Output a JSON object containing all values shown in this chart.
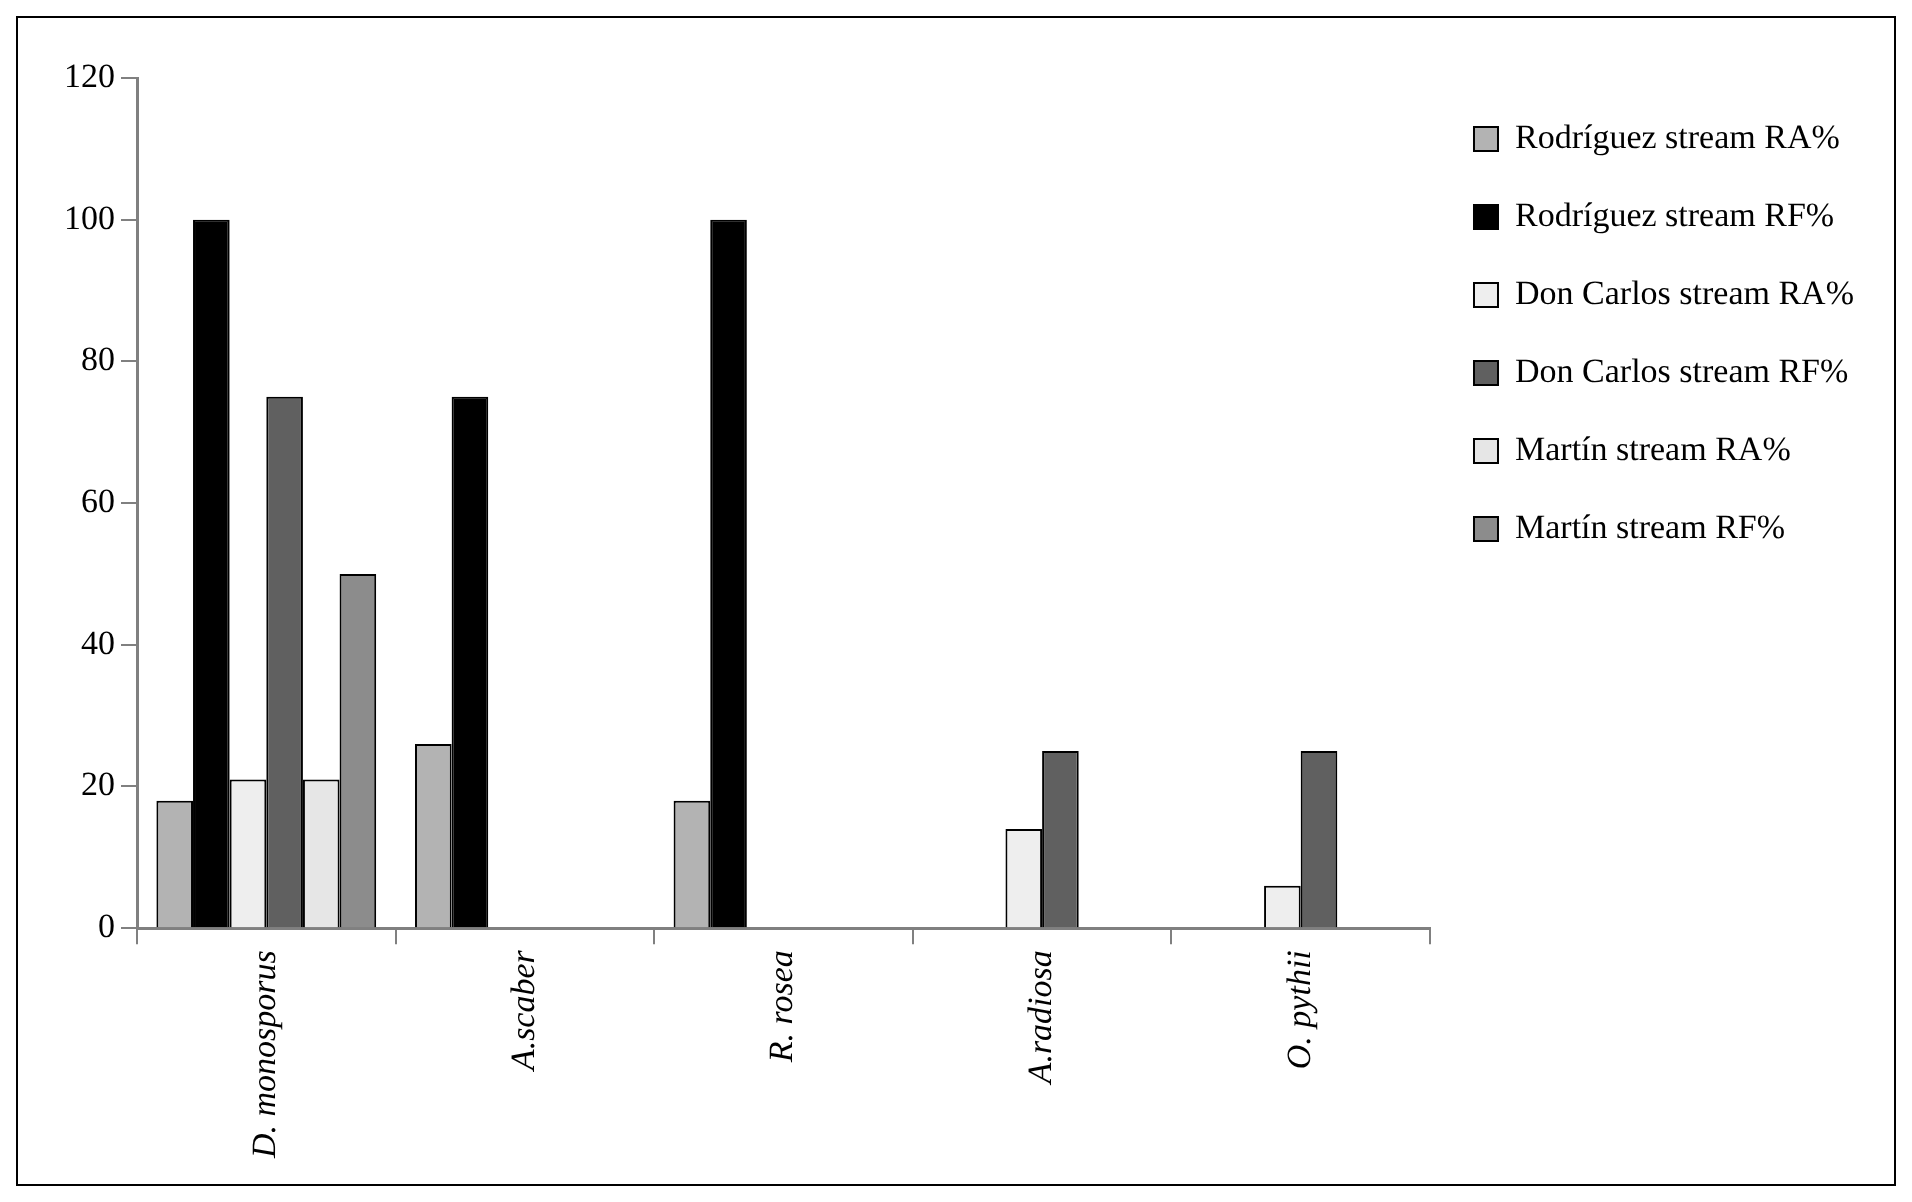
{
  "chart_data": {
    "type": "bar",
    "categories": [
      "D. monosporus",
      "A.scaber",
      "R. rosea",
      "A.radiosa",
      "O. pythii"
    ],
    "series": [
      {
        "name": "Rodríguez stream RA%",
        "color": "#b3b3b3",
        "values": [
          18,
          26,
          18,
          null,
          null
        ]
      },
      {
        "name": "Rodríguez stream RF%",
        "color": "#000000",
        "values": [
          100,
          75,
          100,
          null,
          null
        ]
      },
      {
        "name": "Don Carlos stream RA%",
        "color": "#eeeeee",
        "values": [
          21,
          null,
          null,
          14,
          6
        ]
      },
      {
        "name": "Don Carlos stream RF%",
        "color": "#606060",
        "values": [
          75,
          null,
          null,
          25,
          25
        ]
      },
      {
        "name": "Martín stream RA%",
        "color": "#e6e6e6",
        "values": [
          21,
          null,
          null,
          null,
          null
        ]
      },
      {
        "name": "Martín stream RF%",
        "color": "#8c8c8c",
        "values": [
          50,
          null,
          null,
          null,
          null
        ]
      }
    ],
    "ylim": [
      0,
      120
    ],
    "yticks": [
      0,
      20,
      40,
      60,
      80,
      100,
      120
    ],
    "grid": false,
    "legend": "right"
  }
}
